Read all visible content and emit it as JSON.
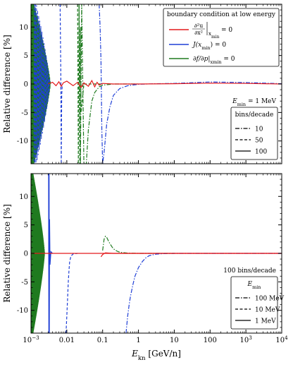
{
  "chart_data": [
    {
      "type": "line",
      "panel": "top",
      "ylabel": "Relative difference [%]",
      "xlabel": "",
      "xscale": "log",
      "xlim": [
        0.001,
        10000
      ],
      "ylim": [
        -14,
        14
      ],
      "yticks": [
        -10,
        -5,
        0,
        5,
        10
      ],
      "annotation": "E_min = 1 MeV",
      "annotation_parts": {
        "symbol": "E",
        "sub": "min",
        "rest": " = 1 MeV"
      },
      "legend_color": {
        "title": "boundary condition at low energy",
        "entries": [
          {
            "label": "∂²u/∂x² |x_min = 0",
            "color": "#e41a1c"
          },
          {
            "label": "J(x_min) = 0",
            "label_parts": {
              "pre": "J(x",
              "sub": "min",
              "post": ") = 0"
            },
            "color": "#1f3fd6"
          },
          {
            "label": "∂f/∂p |x_min = 0",
            "label_parts": {
              "pre": "∂f/∂p|",
              "sub": "x",
              "subsub": "min",
              "post": " = 0"
            },
            "color": "#1f7a1f"
          }
        ]
      },
      "legend_style": {
        "title": "bins/decade",
        "entries": [
          {
            "label": "10",
            "dash": "dashdot"
          },
          {
            "label": "50",
            "dash": "dashed"
          },
          {
            "label": "100",
            "dash": "solid"
          }
        ]
      },
      "series": [
        {
          "color": "#1f3fd6",
          "dash": "dashdot",
          "x": [
            0.08,
            0.085,
            0.09,
            0.095,
            0.1,
            0.11,
            0.13,
            0.16,
            0.2,
            0.3,
            0.5,
            1,
            3,
            10,
            100,
            1000,
            10000
          ],
          "y": [
            14,
            10,
            4,
            -8,
            -14,
            -12,
            -7,
            -4,
            -2,
            -0.8,
            -0.3,
            -0.05,
            0.05,
            0.1,
            0.35,
            0.25,
            0.05
          ]
        },
        {
          "color": "#1f3fd6",
          "dash": "dashed",
          "x": [
            0.0065,
            0.0068,
            0.007,
            0.0072,
            0.0075
          ],
          "y": [
            14,
            2,
            -14,
            -2,
            0
          ]
        },
        {
          "color": "#1f7a1f",
          "dash": "dashdot",
          "x": [
            0.022,
            0.024,
            0.026,
            0.03,
            0.035,
            0.04,
            0.05,
            0.06,
            0.08,
            0.1,
            0.2,
            1
          ],
          "y": [
            14,
            -14,
            14,
            -14,
            -14,
            -8,
            -3,
            -1.5,
            -0.5,
            -0.2,
            0,
            0
          ]
        },
        {
          "color": "#1f7a1f",
          "dash": "dashed",
          "x": [
            0.02,
            0.021,
            0.022,
            0.023,
            0.024,
            0.025,
            0.03,
            0.05,
            0.1
          ],
          "y": [
            14,
            -14,
            14,
            -14,
            10,
            -5,
            0,
            0,
            0
          ]
        },
        {
          "color": "#e41a1c",
          "dash": "solid",
          "x": [
            0.003,
            0.004,
            0.005,
            0.006,
            0.007,
            0.008,
            0.01,
            0.015,
            0.02,
            0.025,
            0.03,
            0.04,
            0.05,
            0.06,
            0.07,
            0.08,
            0.1,
            0.2,
            1,
            10,
            100,
            1000,
            10000
          ],
          "y": [
            0,
            0.3,
            -0.3,
            0.4,
            -0.4,
            0.2,
            0.5,
            -0.3,
            0.3,
            -0.6,
            0.2,
            -0.4,
            0.6,
            -0.5,
            0.3,
            -0.2,
            0.1,
            0,
            0,
            0.05,
            0.15,
            0.1,
            0
          ]
        }
      ]
    },
    {
      "type": "line",
      "panel": "bottom",
      "ylabel": "Relative difference [%]",
      "xlabel": "E_kn [GeV/n]",
      "xlabel_parts": {
        "symbol": "E",
        "sub": "kn",
        "rest": " [GeV/n]"
      },
      "xscale": "log",
      "xlim": [
        0.001,
        10000
      ],
      "ylim": [
        -14,
        14
      ],
      "yticks": [
        -10,
        -5,
        0,
        5,
        10
      ],
      "xticks": [
        "10^-3",
        "0.01",
        "0.1",
        "1",
        "10",
        "100",
        "10^3",
        "10^4"
      ],
      "xtick_labels": [
        {
          "base": "10",
          "exp": "−3"
        },
        {
          "text": "0.01"
        },
        {
          "text": "0.1"
        },
        {
          "text": "1"
        },
        {
          "text": "10"
        },
        {
          "text": "100"
        },
        {
          "base": "10",
          "exp": "3"
        },
        {
          "base": "10",
          "exp": "4"
        }
      ],
      "annotation": "100 bins/decade",
      "legend_style": {
        "title": "E_min",
        "title_parts": {
          "symbol": "E",
          "sub": "min"
        },
        "entries": [
          {
            "label": "100 MeV",
            "dash": "dashdot"
          },
          {
            "label": "10 MeV",
            "dash": "dashed"
          },
          {
            "label": "1 MeV",
            "dash": "solid"
          }
        ]
      },
      "series": [
        {
          "color": "#1f7a1f",
          "dash": "dashdot",
          "x": [
            0.1,
            0.11,
            0.12,
            0.13,
            0.15,
            0.18,
            0.2,
            0.25,
            0.3,
            0.5,
            1,
            10
          ],
          "y": [
            0.5,
            2.5,
            3,
            2.8,
            2,
            1.2,
            0.8,
            0.4,
            0.2,
            0.05,
            0,
            0
          ]
        },
        {
          "color": "#e41a1c",
          "dash": "solid",
          "x": [
            0.09,
            0.1,
            0.12,
            0.15,
            0.2,
            0.3,
            1,
            10,
            10000
          ],
          "y": [
            -0.6,
            -0.2,
            0.1,
            0.05,
            0,
            0,
            0,
            0,
            0
          ]
        },
        {
          "color": "#1f3fd6",
          "dash": "dashdot",
          "x": [
            0.45,
            0.5,
            0.55,
            0.6,
            0.7,
            0.8,
            1,
            1.3,
            1.6,
            2,
            3,
            5,
            10,
            10000
          ],
          "y": [
            -14,
            -11,
            -9,
            -7.5,
            -5.5,
            -4,
            -2.5,
            -1.4,
            -0.8,
            -0.4,
            -0.15,
            -0.05,
            0,
            0
          ]
        },
        {
          "color": "#1f3fd6",
          "dash": "dashed",
          "x": [
            0.0095,
            0.01,
            0.0105,
            0.011,
            0.0115,
            0.012,
            0.013,
            0.015,
            0.02
          ],
          "y": [
            -14,
            -11,
            -8,
            -5,
            -3,
            -1.5,
            -0.5,
            -0.1,
            0
          ]
        },
        {
          "color": "#1f3fd6",
          "dash": "solid",
          "x": [
            0.0031,
            0.00315,
            0.0032,
            0.00325,
            0.0033,
            0.0034,
            0.0036,
            0.004
          ],
          "y": [
            14,
            -14,
            14,
            -14,
            6,
            -2,
            0.3,
            0
          ]
        },
        {
          "color": "#e41a1c",
          "dash": "solid",
          "x": [
            0.001,
            0.002,
            0.005,
            0.01,
            0.1,
            1,
            10000
          ],
          "y": [
            0,
            0,
            0,
            0,
            0,
            0,
            0
          ]
        }
      ]
    }
  ]
}
